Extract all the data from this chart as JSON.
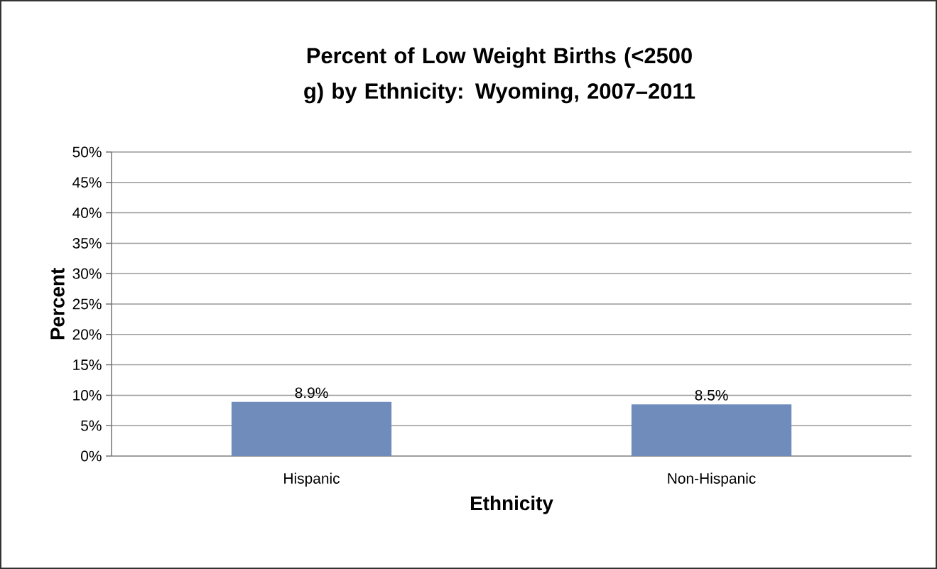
{
  "chart_data": {
    "type": "bar",
    "title": "Percent of Low Weight Births (<2500 g) by Ethnicity: Wyoming, 2007–2011",
    "xlabel": "Ethnicity",
    "ylabel": "Percent",
    "categories": [
      "Hispanic",
      "Non-Hispanic"
    ],
    "values": [
      8.9,
      8.5
    ],
    "value_labels": [
      "8.9%",
      "8.5%"
    ],
    "color": "#6f8cba",
    "ylim": [
      0,
      50
    ],
    "yticks": [
      {
        "value": 0,
        "label": "0%"
      },
      {
        "value": 5,
        "label": "5%"
      },
      {
        "value": 10,
        "label": "10%"
      },
      {
        "value": 15,
        "label": "15%"
      },
      {
        "value": 20,
        "label": "20%"
      },
      {
        "value": 25,
        "label": "25%"
      },
      {
        "value": 30,
        "label": "30%"
      },
      {
        "value": 35,
        "label": "35%"
      },
      {
        "value": 40,
        "label": "40%"
      },
      {
        "value": 45,
        "label": "45%"
      },
      {
        "value": 50,
        "label": "50%"
      }
    ],
    "grid": "y"
  }
}
